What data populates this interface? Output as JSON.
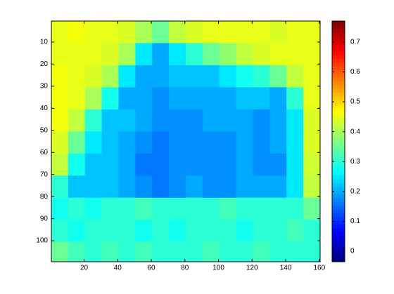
{
  "chart_data": {
    "type": "heatmap",
    "colormap": "jet",
    "x": [
      5.5,
      15.5,
      25.5,
      35.5,
      45.5,
      55.5,
      65.5,
      75.5,
      85.5,
      95.5,
      105.5,
      115.5,
      125.5,
      135.5,
      145.5,
      155.5
    ],
    "y": [
      5.5,
      15.5,
      25.5,
      35.5,
      45.5,
      55.5,
      65.5,
      75.5,
      85.5,
      95.5,
      105.5
    ],
    "z": [
      [
        0.45,
        0.46,
        0.45,
        0.45,
        0.44,
        0.4,
        0.35,
        0.42,
        0.44,
        0.45,
        0.45,
        0.45,
        0.45,
        0.44,
        0.45,
        0.45
      ],
      [
        0.45,
        0.45,
        0.45,
        0.44,
        0.4,
        0.25,
        0.2,
        0.25,
        0.3,
        0.35,
        0.38,
        0.42,
        0.44,
        0.45,
        0.45,
        0.45
      ],
      [
        0.46,
        0.45,
        0.44,
        0.4,
        0.25,
        0.2,
        0.2,
        0.22,
        0.22,
        0.22,
        0.25,
        0.28,
        0.3,
        0.35,
        0.42,
        0.45
      ],
      [
        0.46,
        0.45,
        0.4,
        0.28,
        0.2,
        0.2,
        0.18,
        0.2,
        0.2,
        0.2,
        0.2,
        0.22,
        0.22,
        0.2,
        0.3,
        0.45
      ],
      [
        0.46,
        0.42,
        0.3,
        0.22,
        0.22,
        0.2,
        0.18,
        0.18,
        0.18,
        0.2,
        0.2,
        0.2,
        0.18,
        0.2,
        0.25,
        0.44
      ],
      [
        0.44,
        0.35,
        0.25,
        0.22,
        0.2,
        0.18,
        0.16,
        0.18,
        0.18,
        0.18,
        0.18,
        0.2,
        0.18,
        0.2,
        0.25,
        0.44
      ],
      [
        0.42,
        0.28,
        0.22,
        0.22,
        0.2,
        0.16,
        0.16,
        0.18,
        0.18,
        0.18,
        0.18,
        0.2,
        0.18,
        0.18,
        0.25,
        0.43
      ],
      [
        0.3,
        0.22,
        0.22,
        0.22,
        0.2,
        0.18,
        0.16,
        0.18,
        0.2,
        0.18,
        0.18,
        0.2,
        0.2,
        0.2,
        0.25,
        0.42
      ],
      [
        0.28,
        0.3,
        0.28,
        0.3,
        0.3,
        0.32,
        0.3,
        0.3,
        0.3,
        0.3,
        0.32,
        0.3,
        0.3,
        0.3,
        0.3,
        0.35
      ],
      [
        0.3,
        0.28,
        0.3,
        0.3,
        0.3,
        0.28,
        0.3,
        0.28,
        0.3,
        0.3,
        0.3,
        0.28,
        0.3,
        0.3,
        0.32,
        0.3
      ],
      [
        0.35,
        0.32,
        0.3,
        0.32,
        0.3,
        0.32,
        0.3,
        0.3,
        0.3,
        0.32,
        0.3,
        0.3,
        0.32,
        0.3,
        0.3,
        0.3
      ]
    ],
    "xlim": [
      0.5,
      160.5
    ],
    "ylim": [
      0.5,
      109.5
    ],
    "xticks": [
      20,
      40,
      60,
      80,
      100,
      120,
      140,
      160
    ],
    "yticks": [
      10,
      20,
      30,
      40,
      50,
      60,
      70,
      80,
      90,
      100
    ],
    "clim": [
      -0.035,
      0.77
    ],
    "cticks": [
      0,
      0.1,
      0.2,
      0.3,
      0.4,
      0.5,
      0.6,
      0.7
    ]
  }
}
